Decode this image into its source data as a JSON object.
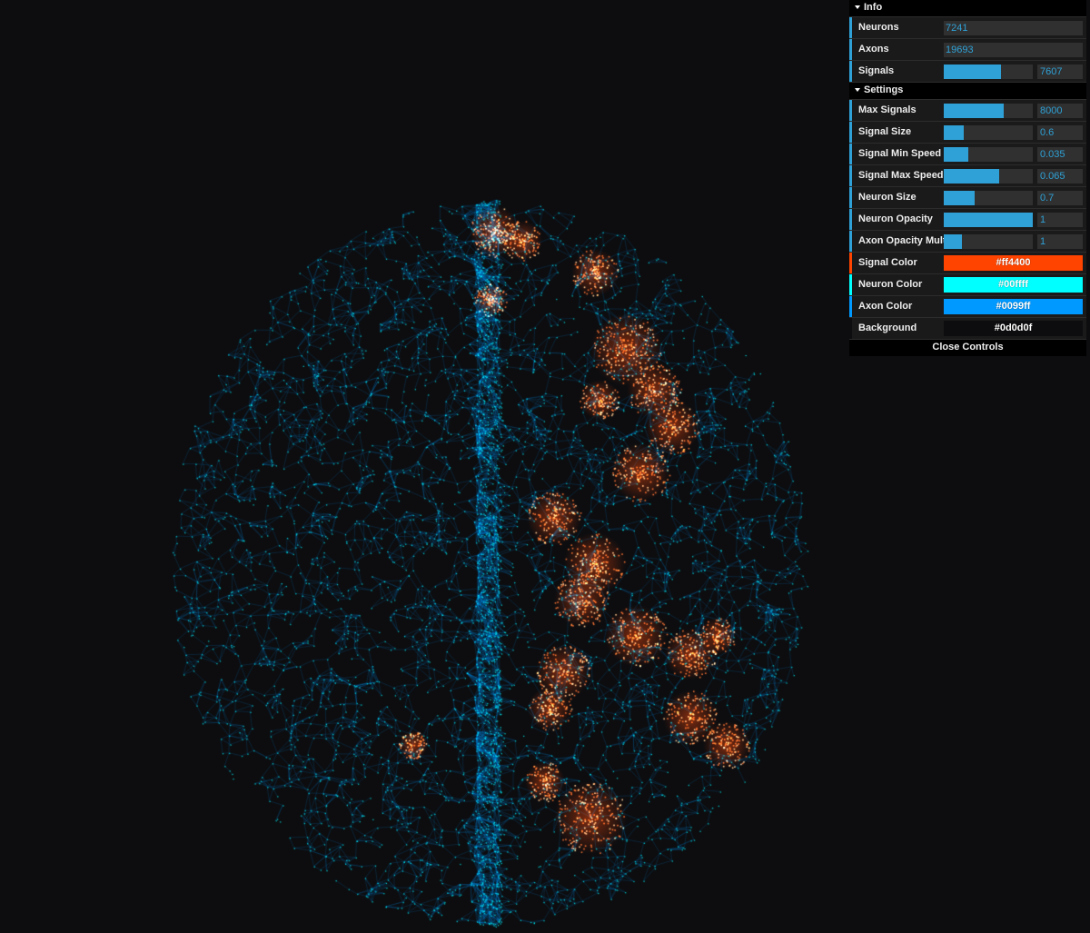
{
  "colors": {
    "background": "#0d0d0f",
    "signal": "#ff4400",
    "neuron": "#00ffff",
    "axon": "#0099ff",
    "accent": "#2fa1d6"
  },
  "info": {
    "title": "Info",
    "neurons": {
      "label": "Neurons",
      "value": "7241"
    },
    "axons": {
      "label": "Axons",
      "value": "19693"
    },
    "signals": {
      "label": "Signals",
      "value": "7607",
      "level": 0.64
    }
  },
  "settings": {
    "title": "Settings",
    "max_signals": {
      "label": "Max Signals",
      "value": "8000",
      "level": 0.67
    },
    "signal_size": {
      "label": "Signal Size",
      "value": "0.6",
      "level": 0.22
    },
    "signal_min_speed": {
      "label": "Signal Min Speed",
      "value": "0.035",
      "level": 0.28
    },
    "signal_max_speed": {
      "label": "Signal Max Speed",
      "value": "0.065",
      "level": 0.62
    },
    "neuron_size": {
      "label": "Neuron Size",
      "value": "0.7",
      "level": 0.35
    },
    "neuron_opacity": {
      "label": "Neuron Opacity",
      "value": "1",
      "level": 1.0
    },
    "axon_opacity_mult": {
      "label": "Axon Opacity Mult",
      "value": "1",
      "level": 0.2
    },
    "signal_color": {
      "label": "Signal Color",
      "value": "#ff4400"
    },
    "neuron_color": {
      "label": "Neuron Color",
      "value": "#00ffff"
    },
    "axon_color": {
      "label": "Axon Color",
      "value": "#0099ff"
    },
    "background": {
      "label": "Background",
      "value": "#0d0d0f"
    }
  },
  "close_label": "Close Controls"
}
